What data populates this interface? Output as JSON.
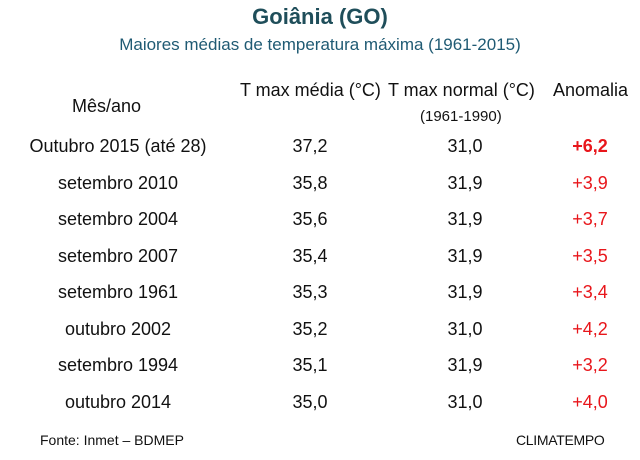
{
  "header": {
    "title": "Goiânia (GO)",
    "subtitle": "Maiores médias de temperatura máxima (1961-2015)"
  },
  "table": {
    "col_month": "Mês/ano",
    "col_tmax": "T max média (°C)",
    "col_normal": "T max  normal (°C)",
    "col_normal_period": "(1961-1990)",
    "col_anomaly": "Anomalia",
    "rows": [
      {
        "month": "Outubro 2015 (até 28)",
        "tmax": "37,2",
        "normal": "31,0",
        "anomaly": "+6,2"
      },
      {
        "month": "setembro 2010",
        "tmax": "35,8",
        "normal": "31,9",
        "anomaly": "+3,9"
      },
      {
        "month": "setembro 2004",
        "tmax": "35,6",
        "normal": "31,9",
        "anomaly": "+3,7"
      },
      {
        "month": "setembro 2007",
        "tmax": "35,4",
        "normal": "31,9",
        "anomaly": "+3,5"
      },
      {
        "month": "setembro 1961",
        "tmax": "35,3",
        "normal": "31,9",
        "anomaly": "+3,4"
      },
      {
        "month": "outubro 2002",
        "tmax": "35,2",
        "normal": "31,0",
        "anomaly": "+4,2"
      },
      {
        "month": "setembro 1994",
        "tmax": "35,1",
        "normal": "31,9",
        "anomaly": "+3,2"
      },
      {
        "month": "outubro 2014",
        "tmax": "35,0",
        "normal": "31,0",
        "anomaly": "+4,0"
      }
    ]
  },
  "footer": {
    "source": "Fonte: Inmet – BDMEP",
    "brand": "CLIMATEMPO"
  },
  "colors": {
    "title": "#1f4e5a",
    "subtitle": "#1f5a73",
    "anomaly": "#e8161b"
  }
}
